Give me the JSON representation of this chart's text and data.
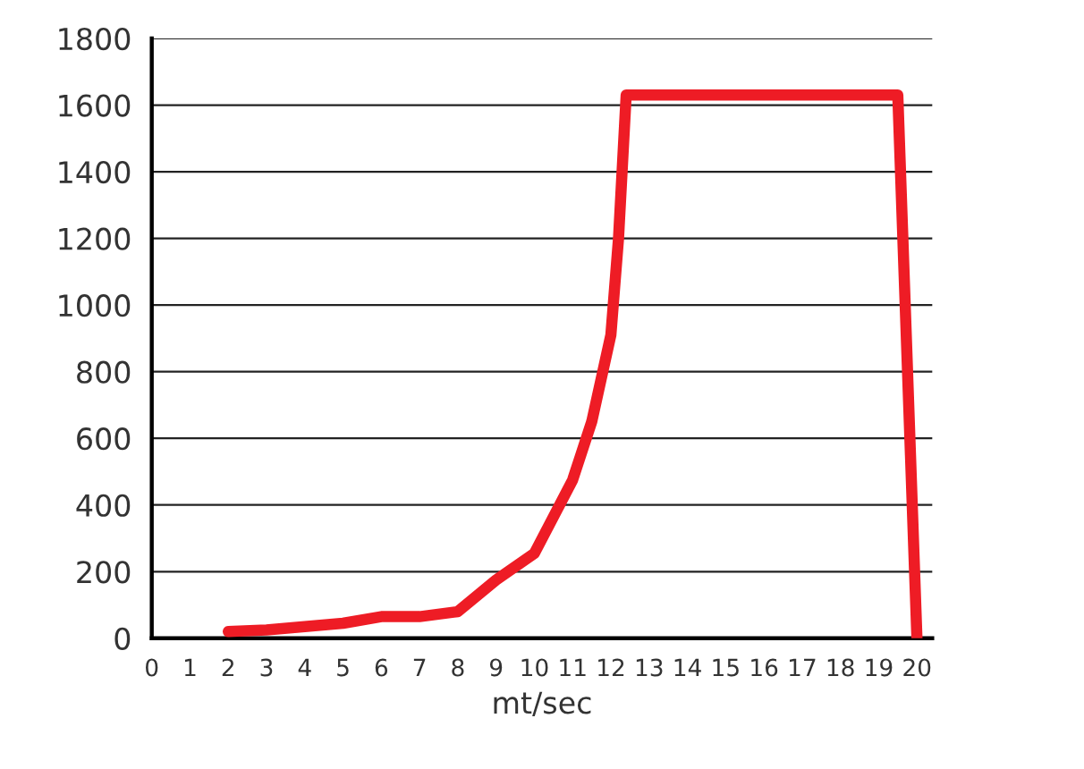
{
  "chart_data": {
    "type": "line",
    "xlabel": "mt/sec",
    "x": [
      2,
      3,
      4,
      5,
      6,
      7,
      8,
      9,
      10,
      11,
      11.5,
      12,
      12.2,
      12.4,
      19.5,
      20
    ],
    "series": [
      {
        "color": "#ee1c25",
        "values": [
          20,
          25,
          35,
          45,
          65,
          65,
          80,
          175,
          255,
          475,
          650,
          910,
          1200,
          1630,
          1630,
          0
        ]
      }
    ],
    "xlim": [
      0,
      20.4
    ],
    "xticks": [
      0,
      1,
      2,
      3,
      4,
      5,
      6,
      7,
      8,
      9,
      10,
      11,
      12,
      13,
      14,
      15,
      16,
      17,
      18,
      19,
      20
    ],
    "ylim": [
      0,
      1800
    ],
    "yticks": [
      0,
      200,
      400,
      600,
      800,
      1000,
      1200,
      1400,
      1600,
      1800
    ],
    "grid": "y",
    "legend": false,
    "marker": "none",
    "line_style": "solid"
  }
}
